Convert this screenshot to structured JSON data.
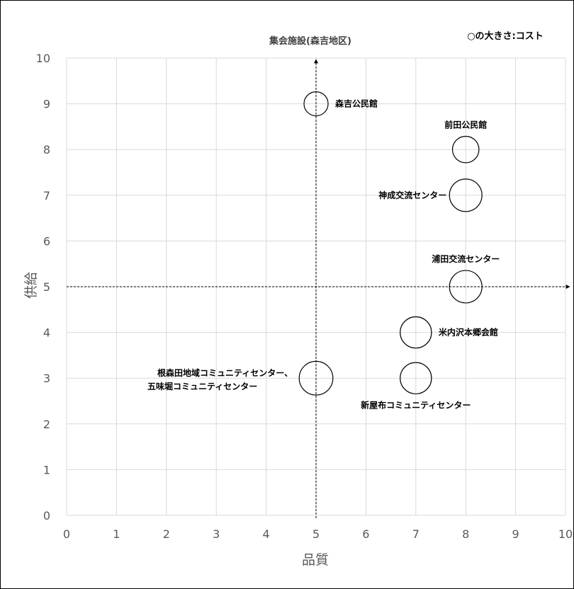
{
  "chart_data": {
    "type": "scatter",
    "title": "集会施設(森吉地区)",
    "legend_note": "○の大きさ:コスト",
    "xlabel": "品質",
    "ylabel": "供給",
    "xlim": [
      0,
      10
    ],
    "ylim": [
      0,
      10
    ],
    "x_ticks": [
      "0",
      "1",
      "2",
      "3",
      "4",
      "5",
      "6",
      "7",
      "8",
      "9",
      "10"
    ],
    "y_ticks": [
      "0",
      "1",
      "2",
      "3",
      "4",
      "5",
      "6",
      "7",
      "8",
      "9",
      "10"
    ],
    "grid": true,
    "reference_lines": {
      "x": 5,
      "y": 5
    },
    "points": [
      {
        "label": "森吉公民館",
        "x": 5,
        "y": 9,
        "size": 1.0,
        "label_pos": "right"
      },
      {
        "label": "前田公民館",
        "x": 8,
        "y": 8,
        "size": 1.1,
        "label_pos": "above"
      },
      {
        "label": "神成交流センター",
        "x": 8,
        "y": 7,
        "size": 1.35,
        "label_pos": "left"
      },
      {
        "label": "浦田交流センター",
        "x": 8,
        "y": 5,
        "size": 1.35,
        "label_pos": "above"
      },
      {
        "label": "米内沢本郷会館",
        "x": 7,
        "y": 4,
        "size": 1.3,
        "label_pos": "right"
      },
      {
        "label": "新屋布コミュニティセンター",
        "x": 7,
        "y": 3,
        "size": 1.3,
        "label_pos": "below"
      },
      {
        "label": "根森田地域コミュニティセンター、",
        "label2": "五味堀コミュニティセンター",
        "x": 5,
        "y": 3,
        "size": 1.4,
        "label_pos": "left"
      }
    ]
  }
}
